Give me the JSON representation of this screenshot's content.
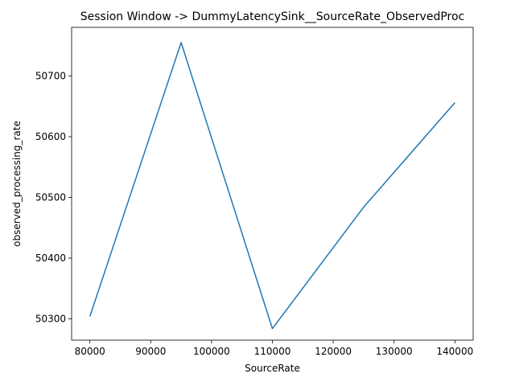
{
  "chart_data": {
    "type": "line",
    "title": "Session Window -> DummyLatencySink__SourceRate_ObservedProc",
    "xlabel": "SourceRate",
    "ylabel": "observed_processing_rate",
    "xlim": [
      77000,
      143000
    ],
    "ylim": [
      50265,
      50780
    ],
    "xticks": [
      80000,
      90000,
      100000,
      110000,
      120000,
      130000,
      140000
    ],
    "yticks": [
      50300,
      50400,
      50500,
      50600,
      50700
    ],
    "grid": false,
    "legend": "none",
    "series": [
      {
        "color": "#1f77b4",
        "x": [
          80000,
          95000,
          110000,
          125000,
          140000
        ],
        "y": [
          50304,
          50755,
          50284,
          50484,
          50656
        ]
      }
    ]
  }
}
